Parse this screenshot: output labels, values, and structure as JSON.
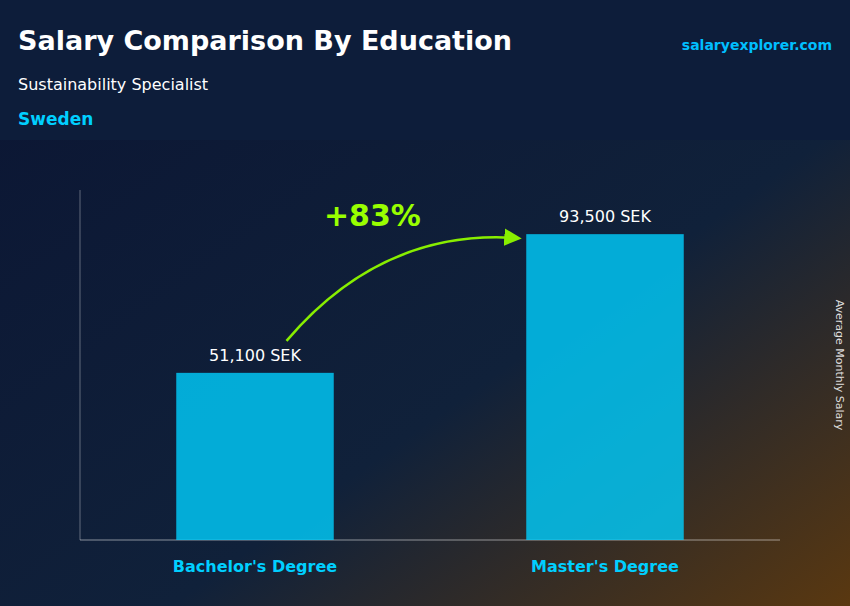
{
  "chart_data": {
    "type": "bar",
    "title": "Salary Comparison By Education",
    "subtitle": "Sustainability Specialist",
    "y_label": "Average Monthly Salary",
    "annotations": [
      "Sweden",
      "salaryexplorer.com",
      "+83%"
    ],
    "categories": [
      "Bachelor's Degree",
      "Master's Degree"
    ],
    "values": [
      51100,
      93500
    ],
    "value_labels": [
      "51,100 SEK",
      "93,500 SEK"
    ],
    "data_labels": true,
    "color": "#00CFFF",
    "ylim": [
      0,
      107000
    ],
    "tick_labels": false,
    "grid": false
  }
}
